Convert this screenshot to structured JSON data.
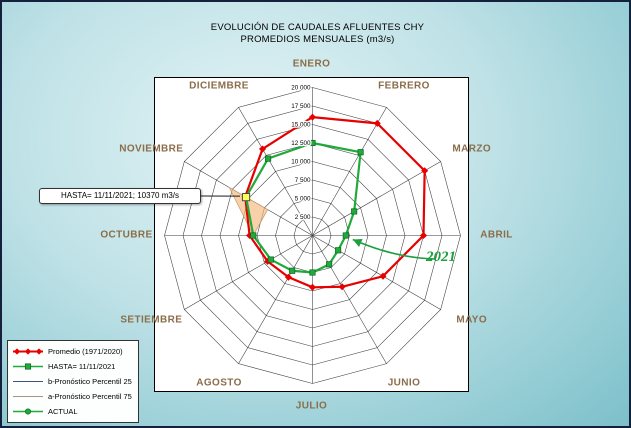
{
  "title": {
    "line1": "EVOLUCIÓN DE CAUDALES AFLUENTES CHY",
    "line2": "PROMEDIOS MENSUALES (m3/s)"
  },
  "callout": {
    "text": "HASTA= 11/11/2021; 10370 m3/s"
  },
  "year_annotation": {
    "label": "2021",
    "color": "#1e9e3e"
  },
  "legend": {
    "items": [
      {
        "id": "promedio",
        "label": "Promedio (1971/2020)",
        "color": "#e60000",
        "marker": "diamond",
        "line_width": 2
      },
      {
        "id": "hasta",
        "label": "HASTA= 11/11/2021",
        "color": "#1faa3a",
        "marker": "square",
        "line_width": 1.6
      },
      {
        "id": "pronostico-p25",
        "label": "b-Pronóstico Percentil 25",
        "color": "#44507a",
        "marker": "none",
        "line_width": 1
      },
      {
        "id": "pronostico-p75",
        "label": "a-Pronóstico Percentil 75",
        "color": "#a89283",
        "marker": "none",
        "line_width": 1
      },
      {
        "id": "actual",
        "label": "ACTUAL",
        "color": "#1faa3a",
        "marker": "circle",
        "line_width": 1.6
      }
    ]
  },
  "chart_data": {
    "type": "radar",
    "title": "EVOLUCIÓN DE CAUDALES AFLUENTES CHY - PROMEDIOS MENSUALES (m3/s)",
    "units": "m3/s",
    "categories": [
      "ENERO",
      "FEBRERO",
      "MARZO",
      "ABRIL",
      "MAYO",
      "JUNIO",
      "JULIO",
      "AGOSTO",
      "SETIEMBRE",
      "OCTUBRE",
      "NOVIEMBRE",
      "DICIEMBRE"
    ],
    "ylim": [
      0,
      20000
    ],
    "ring_step": 2500,
    "tick_labels": [
      "2 500",
      "5 000",
      "7 500",
      "10 000",
      "12 500",
      "15 000",
      "17 500",
      "20 000"
    ],
    "grid": true,
    "legend_position": "bottom-left",
    "month_label_color": "#8a6d4a",
    "series": [
      {
        "id": "promedio",
        "name": "Promedio (1971/2020)",
        "color": "#e60000",
        "marker": "diamond",
        "values": [
          16000,
          17500,
          17500,
          15000,
          11000,
          8000,
          7000,
          6500,
          7000,
          8500,
          10500,
          13500
        ]
      },
      {
        "id": "hasta",
        "name": "HASTA= 11/11/2021",
        "color": "#1faa3a",
        "marker": "square",
        "values": [
          12500,
          13000,
          6500,
          4500,
          4000,
          4500,
          5000,
          5500,
          6500,
          8000,
          10370,
          12000
        ]
      }
    ],
    "forecast_band": {
      "p25_name": "b-Pronóstico Percentil 25",
      "p75_name": "a-Pronóstico Percentil 75",
      "months": [
        "OCTUBRE",
        "NOVIEMBRE"
      ],
      "p25": [
        8000,
        7000
      ],
      "p75": [
        8000,
        13000
      ],
      "color": "#f5b87e"
    },
    "highlight_point": {
      "month": "NOVIEMBRE",
      "value": 10370,
      "marker_color": "#ffff55",
      "label": "HASTA= 11/11/2021; 10370 m3/s"
    },
    "annotations": [
      {
        "text": "2021",
        "color": "#1e9e3e",
        "points_to_month": "ABRIL",
        "points_to_series": "hasta"
      }
    ]
  }
}
